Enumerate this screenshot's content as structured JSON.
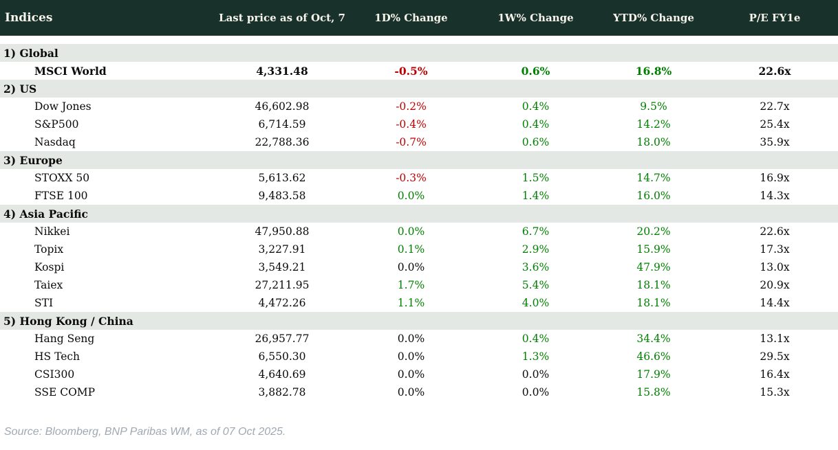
{
  "colors": {
    "header_bg": "#18312b",
    "header_text": "#f7f4ec",
    "section_bg": "#e3e8e4",
    "positive": "#008000",
    "negative": "#c00000",
    "neutral": "#0a0a0a",
    "footer_text": "#9fa8b2"
  },
  "table": {
    "columns": [
      "Indices",
      "Last price as of Oct, 7",
      "1D% Change",
      "1W% Change",
      "YTD% Change",
      "P/E FY1e"
    ],
    "sections": [
      {
        "label": "1) Global",
        "rows": [
          {
            "name": "MSCI World",
            "bold": true,
            "price": "4,331.48",
            "d1": {
              "text": "-0.5%",
              "tone": "neg"
            },
            "w1": {
              "text": "0.6%",
              "tone": "pos"
            },
            "ytd": {
              "text": "16.8%",
              "tone": "pos"
            },
            "pe": "22.6x"
          }
        ]
      },
      {
        "label": "2) US",
        "rows": [
          {
            "name": "Dow Jones",
            "bold": false,
            "price": "46,602.98",
            "d1": {
              "text": "-0.2%",
              "tone": "neg"
            },
            "w1": {
              "text": "0.4%",
              "tone": "pos"
            },
            "ytd": {
              "text": "9.5%",
              "tone": "pos"
            },
            "pe": "22.7x"
          },
          {
            "name": "S&P500",
            "bold": false,
            "price": "6,714.59",
            "d1": {
              "text": "-0.4%",
              "tone": "neg"
            },
            "w1": {
              "text": "0.4%",
              "tone": "pos"
            },
            "ytd": {
              "text": "14.2%",
              "tone": "pos"
            },
            "pe": "25.4x"
          },
          {
            "name": "Nasdaq",
            "bold": false,
            "price": "22,788.36",
            "d1": {
              "text": "-0.7%",
              "tone": "neg"
            },
            "w1": {
              "text": "0.6%",
              "tone": "pos"
            },
            "ytd": {
              "text": "18.0%",
              "tone": "pos"
            },
            "pe": "35.9x"
          }
        ]
      },
      {
        "label": "3) Europe",
        "rows": [
          {
            "name": "STOXX 50",
            "bold": false,
            "price": "5,613.62",
            "d1": {
              "text": "-0.3%",
              "tone": "neg"
            },
            "w1": {
              "text": "1.5%",
              "tone": "pos"
            },
            "ytd": {
              "text": "14.7%",
              "tone": "pos"
            },
            "pe": "16.9x"
          },
          {
            "name": "FTSE 100",
            "bold": false,
            "price": "9,483.58",
            "d1": {
              "text": "0.0%",
              "tone": "pos"
            },
            "w1": {
              "text": "1.4%",
              "tone": "pos"
            },
            "ytd": {
              "text": "16.0%",
              "tone": "pos"
            },
            "pe": "14.3x"
          }
        ]
      },
      {
        "label": "4) Asia Pacific",
        "rows": [
          {
            "name": "Nikkei",
            "bold": false,
            "price": "47,950.88",
            "d1": {
              "text": "0.0%",
              "tone": "pos"
            },
            "w1": {
              "text": "6.7%",
              "tone": "pos"
            },
            "ytd": {
              "text": "20.2%",
              "tone": "pos"
            },
            "pe": "22.6x"
          },
          {
            "name": "Topix",
            "bold": false,
            "price": "3,227.91",
            "d1": {
              "text": "0.1%",
              "tone": "pos"
            },
            "w1": {
              "text": "2.9%",
              "tone": "pos"
            },
            "ytd": {
              "text": "15.9%",
              "tone": "pos"
            },
            "pe": "17.3x"
          },
          {
            "name": "Kospi",
            "bold": false,
            "price": "3,549.21",
            "d1": {
              "text": "0.0%",
              "tone": "flat"
            },
            "w1": {
              "text": "3.6%",
              "tone": "pos"
            },
            "ytd": {
              "text": "47.9%",
              "tone": "pos"
            },
            "pe": "13.0x"
          },
          {
            "name": "Taiex",
            "bold": false,
            "price": "27,211.95",
            "d1": {
              "text": "1.7%",
              "tone": "pos"
            },
            "w1": {
              "text": "5.4%",
              "tone": "pos"
            },
            "ytd": {
              "text": "18.1%",
              "tone": "pos"
            },
            "pe": "20.9x"
          },
          {
            "name": "STI",
            "bold": false,
            "price": "4,472.26",
            "d1": {
              "text": "1.1%",
              "tone": "pos"
            },
            "w1": {
              "text": "4.0%",
              "tone": "pos"
            },
            "ytd": {
              "text": "18.1%",
              "tone": "pos"
            },
            "pe": "14.4x"
          }
        ]
      },
      {
        "label": "5) Hong Kong / China",
        "rows": [
          {
            "name": "Hang Seng",
            "bold": false,
            "price": "26,957.77",
            "d1": {
              "text": "0.0%",
              "tone": "flat"
            },
            "w1": {
              "text": "0.4%",
              "tone": "pos"
            },
            "ytd": {
              "text": "34.4%",
              "tone": "pos"
            },
            "pe": "13.1x"
          },
          {
            "name": "HS Tech",
            "bold": false,
            "price": "6,550.30",
            "d1": {
              "text": "0.0%",
              "tone": "flat"
            },
            "w1": {
              "text": "1.3%",
              "tone": "pos"
            },
            "ytd": {
              "text": "46.6%",
              "tone": "pos"
            },
            "pe": "29.5x"
          },
          {
            "name": "CSI300",
            "bold": false,
            "price": "4,640.69",
            "d1": {
              "text": "0.0%",
              "tone": "flat"
            },
            "w1": {
              "text": "0.0%",
              "tone": "flat"
            },
            "ytd": {
              "text": "17.9%",
              "tone": "pos"
            },
            "pe": "16.4x"
          },
          {
            "name": "SSE COMP",
            "bold": false,
            "price": "3,882.78",
            "d1": {
              "text": "0.0%",
              "tone": "flat"
            },
            "w1": {
              "text": "0.0%",
              "tone": "flat"
            },
            "ytd": {
              "text": "15.8%",
              "tone": "pos"
            },
            "pe": "15.3x"
          }
        ]
      }
    ]
  },
  "footer": {
    "source_text": "Source: Bloomberg, BNP Paribas WM, as of 07 Oct 2025."
  }
}
